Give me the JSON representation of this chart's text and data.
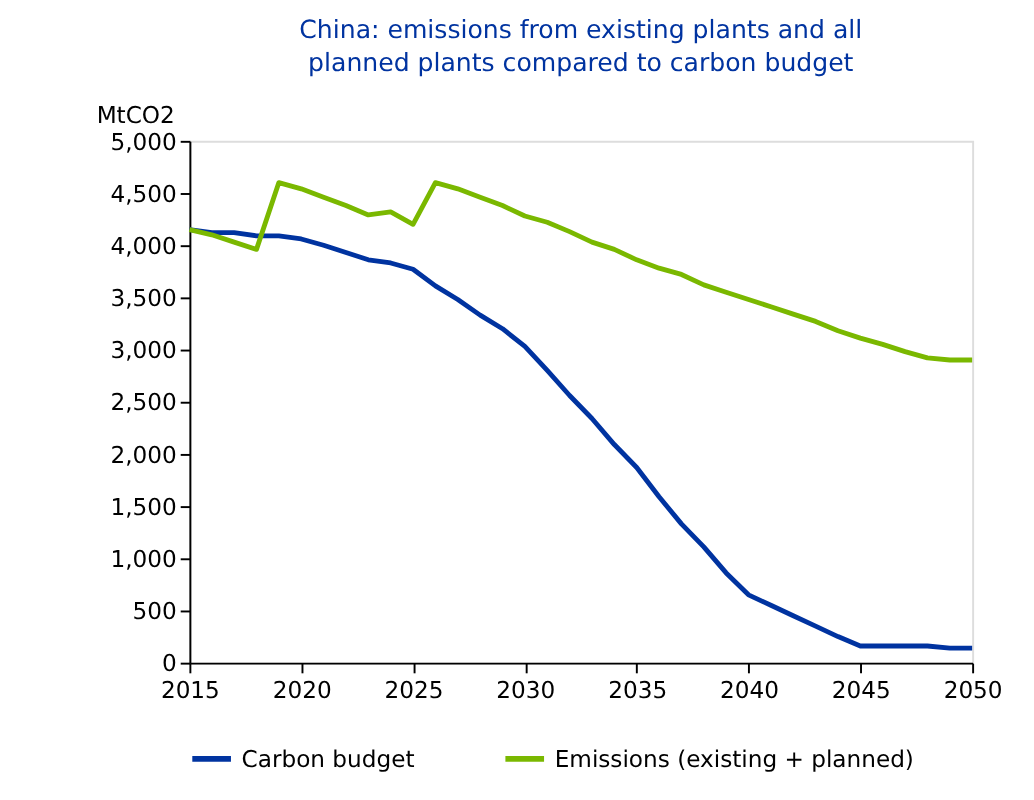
{
  "chart_data": {
    "type": "line",
    "title": "China: emissions from existing plants and all planned plants compared to carbon budget",
    "ylabel": "MtCO2",
    "x": [
      2015,
      2016,
      2017,
      2018,
      2019,
      2020,
      2021,
      2022,
      2023,
      2024,
      2025,
      2026,
      2027,
      2028,
      2029,
      2030,
      2031,
      2032,
      2033,
      2034,
      2035,
      2036,
      2037,
      2038,
      2039,
      2040,
      2041,
      2042,
      2043,
      2044,
      2045,
      2046,
      2047,
      2048,
      2049,
      2050
    ],
    "series": [
      {
        "name": "Carbon budget",
        "color": "#0033a0",
        "values": [
          4150,
          4120,
          4120,
          4090,
          4090,
          4060,
          4000,
          3930,
          3860,
          3830,
          3770,
          3610,
          3480,
          3330,
          3200,
          3030,
          2800,
          2560,
          2340,
          2090,
          1870,
          1590,
          1330,
          1110,
          860,
          650,
          550,
          450,
          350,
          250,
          160,
          160,
          160,
          160,
          140,
          140
        ]
      },
      {
        "name": "Emissions (existing + planned)",
        "color": "#7ab800",
        "values": [
          4150,
          4100,
          4030,
          3960,
          4600,
          4540,
          4460,
          4380,
          4290,
          4320,
          4200,
          4600,
          4540,
          4460,
          4380,
          4280,
          4220,
          4130,
          4030,
          3960,
          3860,
          3780,
          3720,
          3620,
          3550,
          3480,
          3410,
          3340,
          3270,
          3180,
          3110,
          3050,
          2980,
          2920,
          2900,
          2900
        ]
      }
    ],
    "xlim": [
      2015,
      2050
    ],
    "xticks": [
      2015,
      2020,
      2025,
      2030,
      2035,
      2040,
      2045,
      2050
    ],
    "ylim": [
      0,
      5000
    ],
    "yticks": [
      {
        "value": 0,
        "label": "0"
      },
      {
        "value": 500,
        "label": "500"
      },
      {
        "value": 1000,
        "label": "1,000"
      },
      {
        "value": 1500,
        "label": "1,500"
      },
      {
        "value": 2000,
        "label": "2,000"
      },
      {
        "value": 2500,
        "label": "2,500"
      },
      {
        "value": 3000,
        "label": "3,000"
      },
      {
        "value": 3500,
        "label": "3,500"
      },
      {
        "value": 4000,
        "label": "4,000"
      },
      {
        "value": 4500,
        "label": "4,500"
      },
      {
        "value": 5000,
        "label": "5,000"
      }
    ],
    "grid": false,
    "legend": "bottom",
    "marker": "none",
    "line_style": "solid"
  }
}
